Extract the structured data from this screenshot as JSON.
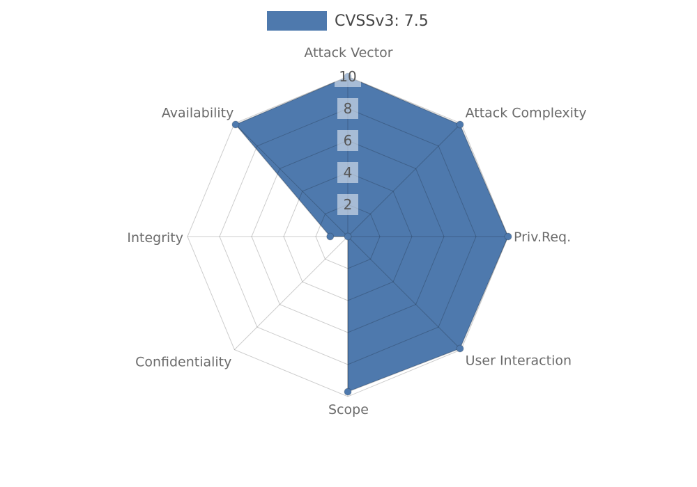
{
  "legend": {
    "label": "CVSSv3: 7.5"
  },
  "colors": {
    "series": "#4E79AD",
    "series_edge": "rgba(0,0,0,0.22)",
    "grid": "rgba(0,0,0,0.2)",
    "axis_label": "#6B6B6B",
    "tick_label": "#555555",
    "tick_box": "rgba(255,255,255,0.5)",
    "legend_text": "#454545",
    "background": "#FFFFFF"
  },
  "chart_data": {
    "type": "radar",
    "title": "CVSSv3: 7.5",
    "legend_position": "top-center",
    "axis_order": "clockwise-from-top",
    "categories": [
      "Attack Vector",
      "Attack Complexity",
      "Priv.Req.",
      "User Interaction",
      "Scope",
      "Confidentiality",
      "Integrity",
      "Availability"
    ],
    "series": [
      {
        "name": "CVSSv3: 7.5",
        "color": "#4E79AD",
        "values": [
          10,
          9.9,
          10,
          9.9,
          9.7,
          0,
          1.1,
          9.9
        ]
      }
    ],
    "radial_ticks": [
      2,
      4,
      6,
      8,
      10
    ],
    "rlim": [
      0,
      10
    ],
    "grid": true
  }
}
